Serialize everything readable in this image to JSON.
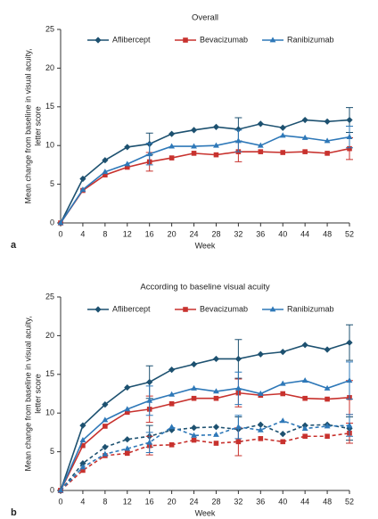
{
  "chart_data": [
    {
      "type": "line",
      "title": "Overall",
      "panel_label": "a",
      "xlabel": "Week",
      "ylabel": [
        "Mean change from baseline in visual acuity,",
        "letter score"
      ],
      "x": [
        0,
        4,
        8,
        12,
        16,
        20,
        24,
        28,
        32,
        36,
        40,
        44,
        48,
        52
      ],
      "xlim": [
        0,
        52
      ],
      "xticks": [
        0,
        4,
        8,
        12,
        16,
        20,
        24,
        28,
        32,
        36,
        40,
        44,
        48,
        52
      ],
      "ylim": [
        0,
        25
      ],
      "yticks": [
        0,
        5,
        10,
        15,
        20,
        25
      ],
      "series": [
        {
          "name": "Aflibercept",
          "color": "#1d5170",
          "marker": "diamond",
          "dash": false,
          "values": [
            0,
            5.7,
            8.1,
            9.8,
            10.2,
            11.5,
            12.0,
            12.4,
            12.1,
            12.8,
            12.3,
            13.3,
            13.1,
            13.3
          ],
          "errors": [
            null,
            null,
            null,
            null,
            1.4,
            null,
            null,
            null,
            1.5,
            null,
            null,
            null,
            null,
            1.6
          ]
        },
        {
          "name": "Bevacizumab",
          "color": "#c8322e",
          "marker": "square",
          "dash": false,
          "values": [
            0,
            4.2,
            6.2,
            7.2,
            7.9,
            8.4,
            9.0,
            8.8,
            9.2,
            9.2,
            9.1,
            9.2,
            9.0,
            9.6
          ],
          "errors": [
            null,
            null,
            null,
            null,
            1.2,
            null,
            null,
            null,
            1.3,
            null,
            null,
            null,
            null,
            1.4
          ]
        },
        {
          "name": "Ranibizumab",
          "color": "#2e78b8",
          "marker": "triangle",
          "dash": false,
          "values": [
            0,
            4.3,
            6.6,
            7.6,
            8.9,
            9.9,
            9.9,
            10.0,
            10.6,
            10.0,
            11.3,
            11.0,
            10.6,
            11.1
          ],
          "errors": [
            null,
            null,
            null,
            null,
            1.4,
            null,
            null,
            null,
            1.4,
            null,
            null,
            null,
            null,
            1.4
          ]
        }
      ]
    },
    {
      "type": "line",
      "title": "According to baseline visual acuity",
      "panel_label": "b",
      "xlabel": "Week",
      "ylabel": [
        "Mean change from baseline in visual acuity,",
        "letter score"
      ],
      "x": [
        0,
        4,
        8,
        12,
        16,
        20,
        24,
        28,
        32,
        36,
        40,
        44,
        48,
        52
      ],
      "xlim": [
        0,
        52
      ],
      "xticks": [
        0,
        4,
        8,
        12,
        16,
        20,
        24,
        28,
        32,
        36,
        40,
        44,
        48,
        52
      ],
      "ylim": [
        0,
        25
      ],
      "yticks": [
        0,
        5,
        10,
        15,
        20,
        25
      ],
      "series": [
        {
          "name": "Aflibercept",
          "color": "#1d5170",
          "marker": "diamond",
          "dash": false,
          "values": [
            0,
            8.4,
            11.1,
            13.3,
            14.0,
            15.6,
            16.3,
            17.0,
            17.0,
            17.6,
            17.9,
            18.8,
            18.2,
            19.1
          ],
          "errors": [
            null,
            null,
            null,
            null,
            2.1,
            null,
            null,
            null,
            2.5,
            null,
            null,
            null,
            null,
            2.3
          ]
        },
        {
          "name": "Bevacizumab",
          "color": "#c8322e",
          "marker": "square",
          "dash": false,
          "values": [
            0,
            5.8,
            8.3,
            10.1,
            10.5,
            11.2,
            11.9,
            11.9,
            12.6,
            12.3,
            12.5,
            11.9,
            11.8,
            12.0
          ],
          "errors": [
            null,
            null,
            null,
            null,
            1.7,
            null,
            null,
            null,
            1.8,
            null,
            null,
            null,
            null,
            2.2
          ]
        },
        {
          "name": "Ranibizumab",
          "color": "#2e78b8",
          "marker": "triangle",
          "dash": false,
          "values": [
            0,
            6.5,
            9.1,
            10.5,
            11.6,
            12.4,
            13.2,
            12.8,
            13.2,
            12.5,
            13.8,
            14.2,
            13.2,
            14.2
          ],
          "errors": [
            null,
            null,
            null,
            null,
            1.9,
            null,
            null,
            null,
            2.1,
            null,
            null,
            null,
            null,
            2.4
          ]
        },
        {
          "color": "#1d5170",
          "marker": "diamond",
          "dash": true,
          "values": [
            0,
            3.5,
            5.6,
            6.6,
            7.0,
            7.8,
            8.1,
            8.2,
            7.9,
            8.5,
            7.3,
            8.4,
            8.5,
            8.0
          ],
          "errors": [
            null,
            null,
            null,
            null,
            1.4,
            null,
            null,
            null,
            1.6,
            null,
            null,
            null,
            null,
            1.5
          ]
        },
        {
          "color": "#c8322e",
          "marker": "square",
          "dash": true,
          "values": [
            0,
            2.6,
            4.5,
            4.8,
            5.8,
            5.9,
            6.5,
            6.1,
            6.3,
            6.7,
            6.3,
            7.0,
            7.0,
            7.4
          ],
          "errors": [
            null,
            null,
            null,
            null,
            1.2,
            null,
            null,
            null,
            1.8,
            null,
            null,
            null,
            null,
            1.3
          ]
        },
        {
          "color": "#2e78b8",
          "marker": "triangle",
          "dash": true,
          "values": [
            0,
            3.0,
            4.7,
            5.4,
            6.2,
            8.2,
            7.1,
            7.2,
            8.2,
            7.8,
            9.0,
            8.0,
            8.3,
            8.4
          ],
          "errors": [
            null,
            null,
            null,
            null,
            1.3,
            null,
            null,
            null,
            1.5,
            null,
            null,
            null,
            null,
            1.4
          ]
        }
      ]
    }
  ]
}
